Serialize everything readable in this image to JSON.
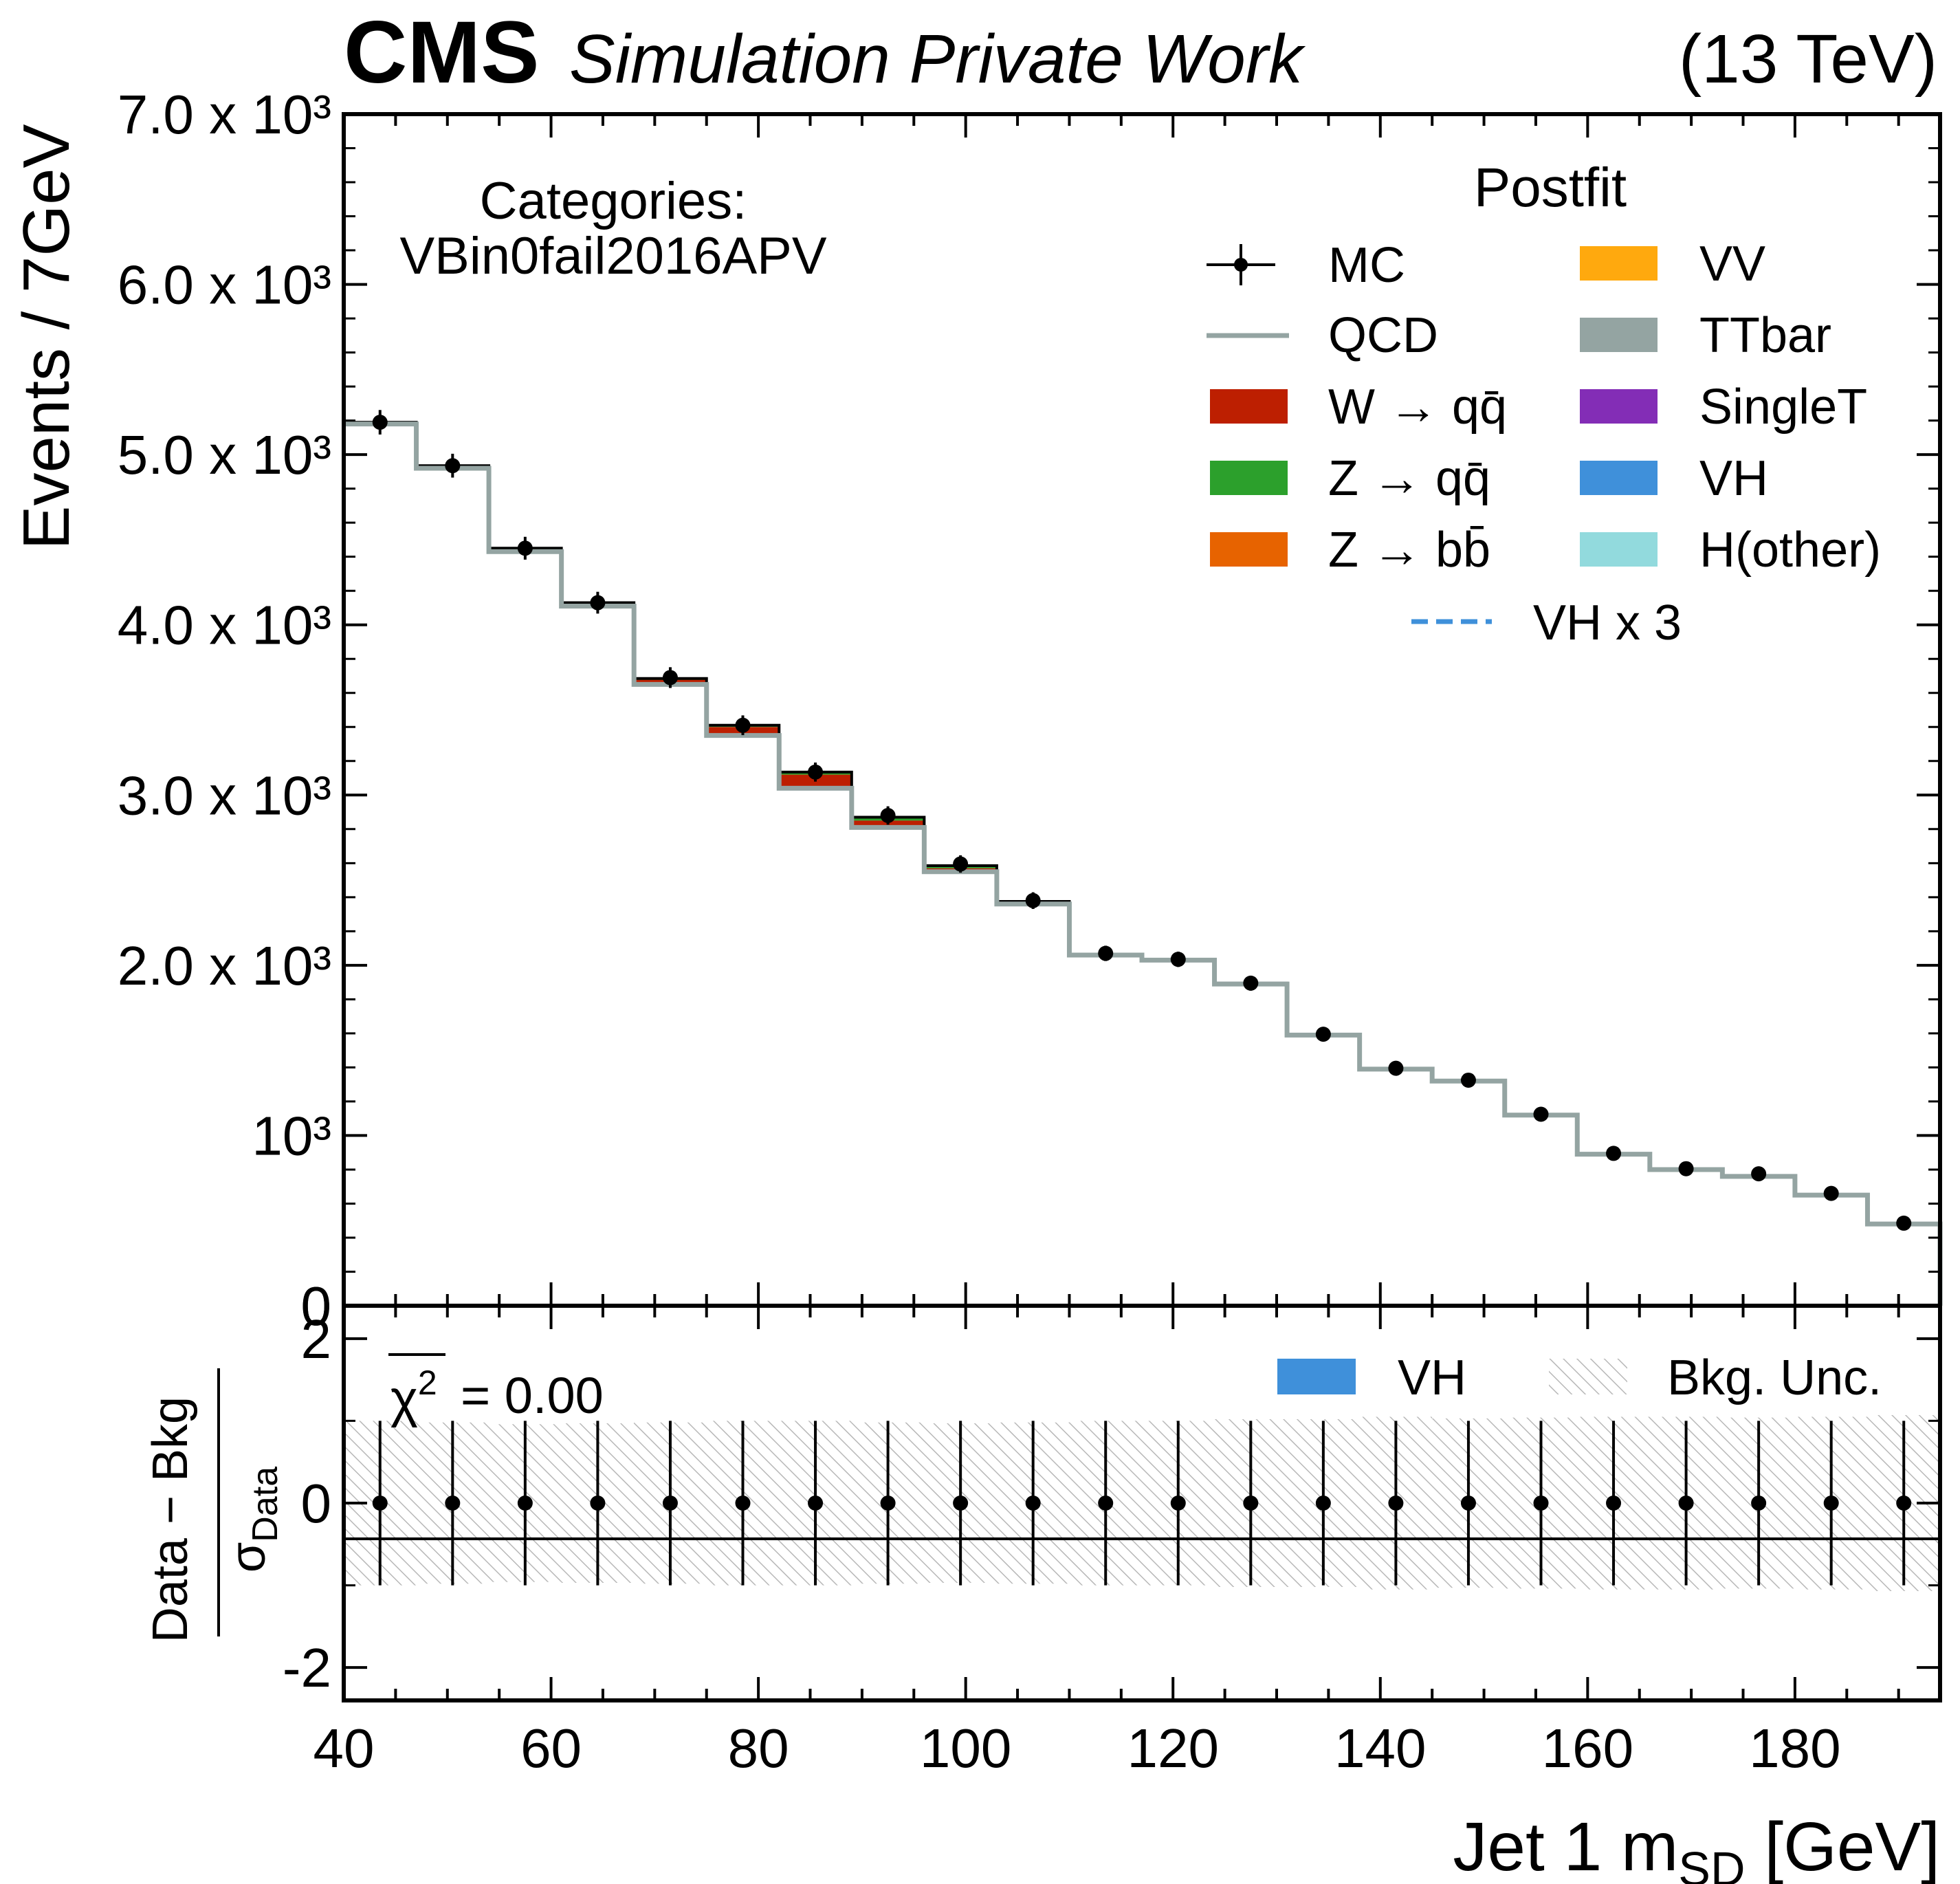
{
  "header": {
    "brand": "CMS",
    "subtitle": "Simulation Private Work",
    "energy": "(13 TeV)"
  },
  "annotation": {
    "line1": "Categories:",
    "line2": "VBin0fail2016APV"
  },
  "legend": {
    "title": "Postfit",
    "items": [
      {
        "key": "mc",
        "label": "MC",
        "kind": "errorbar",
        "color": "#000000"
      },
      {
        "key": "qcd",
        "label": "QCD",
        "kind": "line",
        "color": "#94a4a2"
      },
      {
        "key": "wqq",
        "label": "W → qq̄",
        "kind": "box",
        "color": "#bd1f01"
      },
      {
        "key": "zqq",
        "label": "Z → qq̄",
        "kind": "box",
        "color": "#2ca02c"
      },
      {
        "key": "zbb",
        "label": "Z → bb̄",
        "kind": "box",
        "color": "#e76300"
      },
      {
        "key": "vv",
        "label": "VV",
        "kind": "box",
        "color": "#ffa90e"
      },
      {
        "key": "ttbar",
        "label": "TTbar",
        "kind": "box",
        "color": "#94a4a2"
      },
      {
        "key": "singlet",
        "label": "SingleT",
        "kind": "box",
        "color": "#832db6"
      },
      {
        "key": "vh",
        "label": "VH",
        "kind": "box",
        "color": "#3f90da"
      },
      {
        "key": "hother",
        "label": "H(other)",
        "kind": "box",
        "color": "#92dadd"
      },
      {
        "key": "vhx3",
        "label": "VH x 3",
        "kind": "dashed",
        "color": "#3f90da"
      }
    ]
  },
  "ratio_legend": {
    "vh": "VH",
    "unc": "Bkg. Unc.",
    "chi2_value": "= 0.00"
  },
  "chart_data": [
    {
      "type": "bar",
      "panel": "main",
      "ylabel": "Events / 7GeV",
      "xlim": [
        40,
        194
      ],
      "ylim": [
        0,
        7000
      ],
      "y_tick_labels": [
        "0",
        "10³",
        "2.0 x 10³",
        "3.0 x 10³",
        "4.0 x 10³",
        "5.0 x 10³",
        "6.0 x 10³",
        "7.0 x 10³"
      ],
      "y_ticks": [
        0,
        1000,
        2000,
        3000,
        4000,
        5000,
        6000,
        7000
      ],
      "bin_edges": [
        40,
        47,
        54,
        61,
        68,
        75,
        82,
        89,
        96,
        103,
        110,
        117,
        124,
        131,
        138,
        145,
        152,
        159,
        166,
        173,
        180,
        187,
        194
      ],
      "series": [
        {
          "name": "QCD",
          "values": [
            5180,
            4920,
            4430,
            4110,
            3650,
            3350,
            3040,
            2810,
            2550,
            2360,
            2060,
            2030,
            1890,
            1590,
            1390,
            1320,
            1120,
            890,
            800,
            760,
            650,
            480
          ]
        },
        {
          "name": "W → qq̄",
          "values": [
            10,
            15,
            20,
            20,
            30,
            50,
            80,
            40,
            20,
            10,
            5,
            5,
            5,
            0,
            0,
            0,
            0,
            0,
            0,
            0,
            0,
            0
          ]
        },
        {
          "name": "Z → qq̄",
          "values": [
            0,
            0,
            0,
            0,
            5,
            10,
            15,
            20,
            15,
            5,
            0,
            0,
            0,
            0,
            0,
            0,
            0,
            0,
            0,
            0,
            0,
            0
          ]
        }
      ],
      "mc_points": {
        "x": [
          43.5,
          50.5,
          57.5,
          64.5,
          71.5,
          78.5,
          85.5,
          92.5,
          99.5,
          106.5,
          113.5,
          120.5,
          127.5,
          134.5,
          141.5,
          148.5,
          155.5,
          162.5,
          169.5,
          176.5,
          183.5,
          190.5
        ],
        "y": [
          5190,
          4935,
          4450,
          4130,
          3690,
          3410,
          3135,
          2880,
          2595,
          2380,
          2070,
          2035,
          1895,
          1595,
          1395,
          1325,
          1125,
          895,
          805,
          775,
          660,
          485
        ],
        "yerr": [
          72,
          70,
          67,
          64,
          61,
          58,
          56,
          54,
          51,
          49,
          45,
          45,
          44,
          40,
          37,
          36,
          34,
          30,
          28,
          28,
          26,
          22
        ]
      }
    },
    {
      "type": "scatter",
      "panel": "ratio",
      "ylabel": "Data − Bkg / σData",
      "xlabel": "Jet 1 m_SD [GeV]",
      "xlim": [
        40,
        194
      ],
      "ylim": [
        -2.4,
        2.4
      ],
      "y_tick_labels": [
        "-2",
        "0",
        "2"
      ],
      "y_ticks": [
        -2,
        0,
        2
      ],
      "x_tick_labels": [
        "40",
        "60",
        "80",
        "100",
        "120",
        "140",
        "160",
        "180"
      ],
      "x_ticks": [
        40,
        60,
        80,
        100,
        120,
        140,
        160,
        180
      ],
      "x": [
        43.5,
        50.5,
        57.5,
        64.5,
        71.5,
        78.5,
        85.5,
        92.5,
        99.5,
        106.5,
        113.5,
        120.5,
        127.5,
        134.5,
        141.5,
        148.5,
        155.5,
        162.5,
        169.5,
        176.5,
        183.5,
        190.5
      ],
      "y": [
        0,
        0,
        0,
        0,
        0,
        0,
        0,
        0,
        0,
        0,
        0,
        0,
        0,
        0,
        0,
        0,
        0,
        0,
        0,
        0,
        0,
        0
      ],
      "yerr": [
        1,
        1,
        1,
        1,
        1,
        1,
        1,
        1,
        1,
        1,
        1,
        1,
        1,
        1,
        1,
        1,
        1,
        1,
        1,
        1,
        1,
        1
      ],
      "unc_band": [
        1.0,
        0.98,
        0.96,
        0.97,
        0.98,
        1.0,
        1.0,
        0.98,
        0.97,
        0.98,
        1.0,
        1.0,
        1.02,
        1.02,
        1.05,
        1.03,
        1.04,
        1.05,
        1.05,
        1.04,
        1.05,
        1.07
      ]
    }
  ]
}
